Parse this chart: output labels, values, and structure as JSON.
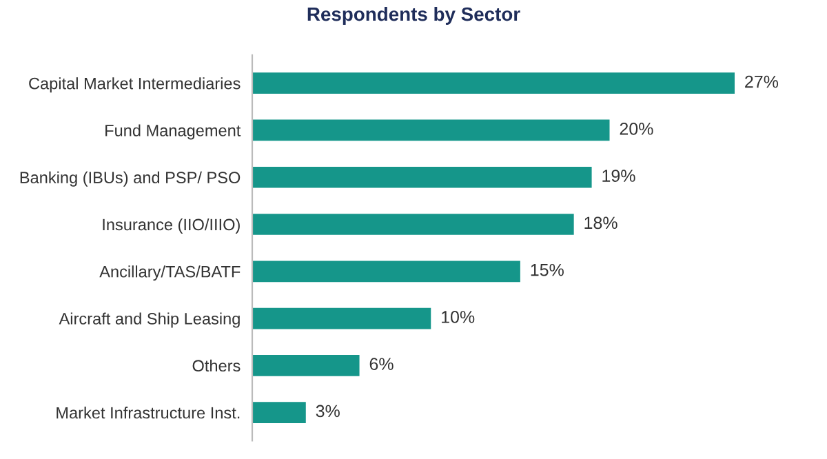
{
  "chart_data": {
    "type": "bar",
    "orientation": "horizontal",
    "title": "Respondents by Sector",
    "categories": [
      "Capital Market Intermediaries",
      "Fund Management",
      "Banking (IBUs) and PSP/ PSO",
      "Insurance (IIO/IIIO)",
      "Ancillary/TAS/BATF",
      "Aircraft and Ship Leasing",
      "Others",
      "Market Infrastructure Inst."
    ],
    "values": [
      27,
      20,
      19,
      18,
      15,
      10,
      6,
      3
    ],
    "value_labels": [
      "27%",
      "20%",
      "19%",
      "18%",
      "15%",
      "10%",
      "6%",
      "3%"
    ],
    "color": "#15968a",
    "grid": false,
    "legend": false
  }
}
